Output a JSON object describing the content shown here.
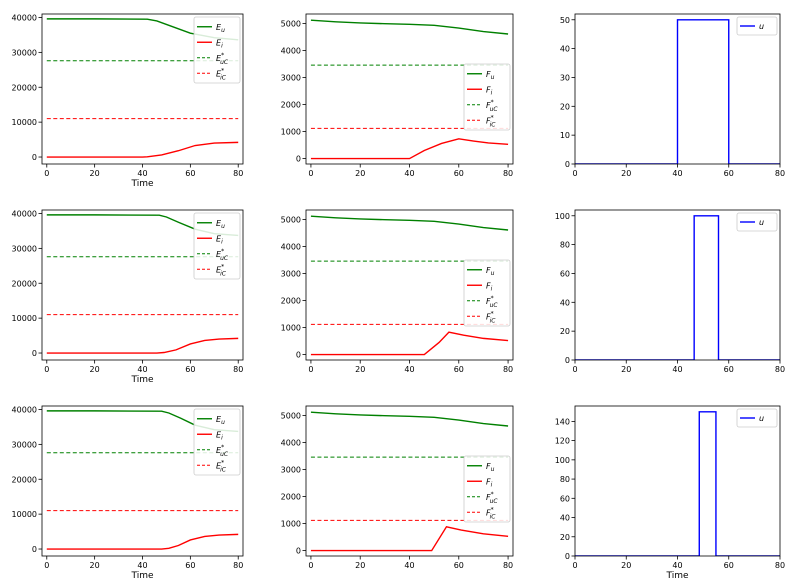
{
  "colors": {
    "E_u": "#008000",
    "E_i": "#ff0000",
    "F_u": "#008000",
    "F_i": "#ff0000",
    "u": "#0000ff",
    "ref_uC": "#008000",
    "ref_iC": "#ff0000"
  },
  "legend_labels": {
    "E": [
      {
        "key": "E_u",
        "base": "E",
        "sub": "u",
        "sup": "",
        "style": "solid"
      },
      {
        "key": "E_i",
        "base": "E",
        "sub": "i",
        "sup": "",
        "style": "solid"
      },
      {
        "key": "E_uC",
        "base": "E",
        "sub": "uC",
        "sup": "*",
        "style": "dashed"
      },
      {
        "key": "E_iC",
        "base": "E",
        "sub": "iC",
        "sup": "*",
        "style": "dashed"
      }
    ],
    "F": [
      {
        "key": "F_u",
        "base": "F",
        "sub": "u",
        "sup": "",
        "style": "solid"
      },
      {
        "key": "F_i",
        "base": "F",
        "sub": "i",
        "sup": "",
        "style": "solid"
      },
      {
        "key": "F_uC",
        "base": "F",
        "sub": "uC",
        "sup": "*",
        "style": "dashed"
      },
      {
        "key": "F_iC",
        "base": "F",
        "sub": "iC",
        "sup": "*",
        "style": "dashed"
      }
    ],
    "U": [
      {
        "key": "u",
        "base": "u",
        "sub": "",
        "sup": "",
        "style": "solid"
      }
    ]
  },
  "chart_data": [
    {
      "row": 0,
      "col": 0,
      "type": "line",
      "kind": "E",
      "xlabel": "Time",
      "xlim": [
        -2,
        82
      ],
      "ylim": [
        -2000,
        41000
      ],
      "xticks": [
        0,
        20,
        40,
        60,
        80
      ],
      "yticks": [
        0,
        10000,
        20000,
        30000,
        40000
      ],
      "legend_loc": "top-right",
      "series": [
        {
          "name": "E_u",
          "style": "solid",
          "points": [
            [
              0,
              39600
            ],
            [
              20,
              39600
            ],
            [
              42,
              39500
            ],
            [
              46,
              39000
            ],
            [
              52,
              37500
            ],
            [
              60,
              35500
            ],
            [
              70,
              34200
            ],
            [
              80,
              33600
            ]
          ]
        },
        {
          "name": "E_i",
          "style": "solid",
          "points": [
            [
              0,
              0
            ],
            [
              40,
              0
            ],
            [
              42,
              50
            ],
            [
              48,
              600
            ],
            [
              55,
              1800
            ],
            [
              62,
              3300
            ],
            [
              70,
              4000
            ],
            [
              80,
              4200
            ]
          ]
        },
        {
          "name": "E_uC",
          "style": "dashed",
          "points": [
            [
              0,
              27600
            ],
            [
              80,
              27600
            ]
          ]
        },
        {
          "name": "E_iC",
          "style": "dashed",
          "points": [
            [
              0,
              11000
            ],
            [
              80,
              11000
            ]
          ]
        }
      ]
    },
    {
      "row": 0,
      "col": 1,
      "type": "line",
      "kind": "F",
      "xlabel": "",
      "xlim": [
        -2,
        82
      ],
      "ylim": [
        -200,
        5350
      ],
      "xticks": [
        0,
        20,
        40,
        60,
        80
      ],
      "yticks": [
        0,
        1000,
        2000,
        3000,
        4000,
        5000
      ],
      "legend_loc": "center-right",
      "series": [
        {
          "name": "F_u",
          "style": "solid",
          "points": [
            [
              0,
              5120
            ],
            [
              10,
              5060
            ],
            [
              20,
              5020
            ],
            [
              30,
              4990
            ],
            [
              40,
              4970
            ],
            [
              50,
              4930
            ],
            [
              60,
              4830
            ],
            [
              70,
              4700
            ],
            [
              80,
              4610
            ]
          ]
        },
        {
          "name": "F_i",
          "style": "solid",
          "points": [
            [
              0,
              0
            ],
            [
              40,
              0
            ],
            [
              46,
              300
            ],
            [
              53,
              560
            ],
            [
              60,
              730
            ],
            [
              66,
              650
            ],
            [
              72,
              580
            ],
            [
              80,
              530
            ]
          ]
        },
        {
          "name": "F_uC",
          "style": "dashed",
          "points": [
            [
              0,
              3460
            ],
            [
              80,
              3460
            ]
          ]
        },
        {
          "name": "F_iC",
          "style": "dashed",
          "points": [
            [
              0,
              1120
            ],
            [
              80,
              1120
            ]
          ]
        }
      ]
    },
    {
      "row": 0,
      "col": 2,
      "type": "line",
      "kind": "U",
      "xlabel": "",
      "xlim": [
        0,
        80
      ],
      "ylim": [
        0,
        52
      ],
      "xticks": [
        0,
        20,
        40,
        60,
        80
      ],
      "yticks": [
        0,
        10,
        20,
        30,
        40,
        50
      ],
      "legend_loc": "top-right",
      "series": [
        {
          "name": "u",
          "style": "solid",
          "points": [
            [
              0,
              0
            ],
            [
              40,
              0
            ],
            [
              40,
              50
            ],
            [
              60,
              50
            ],
            [
              60,
              0
            ],
            [
              80,
              0
            ]
          ]
        }
      ]
    },
    {
      "row": 1,
      "col": 0,
      "type": "line",
      "kind": "E",
      "xlabel": "Time",
      "xlim": [
        -2,
        82
      ],
      "ylim": [
        -2000,
        41000
      ],
      "xticks": [
        0,
        20,
        40,
        60,
        80
      ],
      "yticks": [
        0,
        10000,
        20000,
        30000,
        40000
      ],
      "legend_loc": "top-right",
      "series": [
        {
          "name": "E_u",
          "style": "solid",
          "points": [
            [
              0,
              39600
            ],
            [
              20,
              39600
            ],
            [
              47,
              39500
            ],
            [
              50,
              39000
            ],
            [
              55,
              37500
            ],
            [
              62,
              35500
            ],
            [
              70,
              34200
            ],
            [
              80,
              33700
            ]
          ]
        },
        {
          "name": "E_i",
          "style": "solid",
          "points": [
            [
              0,
              0
            ],
            [
              46,
              0
            ],
            [
              49,
              150
            ],
            [
              54,
              900
            ],
            [
              60,
              2600
            ],
            [
              66,
              3600
            ],
            [
              72,
              4000
            ],
            [
              80,
              4200
            ]
          ]
        },
        {
          "name": "E_uC",
          "style": "dashed",
          "points": [
            [
              0,
              27600
            ],
            [
              80,
              27600
            ]
          ]
        },
        {
          "name": "E_iC",
          "style": "dashed",
          "points": [
            [
              0,
              11000
            ],
            [
              80,
              11000
            ]
          ]
        }
      ]
    },
    {
      "row": 1,
      "col": 1,
      "type": "line",
      "kind": "F",
      "xlabel": "",
      "xlim": [
        -2,
        82
      ],
      "ylim": [
        -200,
        5350
      ],
      "xticks": [
        0,
        20,
        40,
        60,
        80
      ],
      "yticks": [
        0,
        1000,
        2000,
        3000,
        4000,
        5000
      ],
      "legend_loc": "center-right",
      "series": [
        {
          "name": "F_u",
          "style": "solid",
          "points": [
            [
              0,
              5120
            ],
            [
              10,
              5060
            ],
            [
              20,
              5020
            ],
            [
              30,
              4990
            ],
            [
              40,
              4970
            ],
            [
              50,
              4930
            ],
            [
              60,
              4830
            ],
            [
              70,
              4700
            ],
            [
              80,
              4610
            ]
          ]
        },
        {
          "name": "F_i",
          "style": "solid",
          "points": [
            [
              0,
              0
            ],
            [
              46,
              0
            ],
            [
              52,
              450
            ],
            [
              56,
              830
            ],
            [
              62,
              720
            ],
            [
              70,
              600
            ],
            [
              80,
              520
            ]
          ]
        },
        {
          "name": "F_uC",
          "style": "dashed",
          "points": [
            [
              0,
              3460
            ],
            [
              80,
              3460
            ]
          ]
        },
        {
          "name": "F_iC",
          "style": "dashed",
          "points": [
            [
              0,
              1120
            ],
            [
              80,
              1120
            ]
          ]
        }
      ]
    },
    {
      "row": 1,
      "col": 2,
      "type": "line",
      "kind": "U",
      "xlabel": "",
      "xlim": [
        0,
        80
      ],
      "ylim": [
        0,
        104
      ],
      "xticks": [
        0,
        20,
        40,
        60,
        80
      ],
      "yticks": [
        0,
        20,
        40,
        60,
        80,
        100
      ],
      "legend_loc": "top-right",
      "series": [
        {
          "name": "u",
          "style": "solid",
          "points": [
            [
              0,
              0
            ],
            [
              46.5,
              0
            ],
            [
              46.5,
              100
            ],
            [
              56,
              100
            ],
            [
              56,
              0
            ],
            [
              80,
              0
            ]
          ]
        }
      ]
    },
    {
      "row": 2,
      "col": 0,
      "type": "line",
      "kind": "E",
      "xlabel": "Time",
      "xlim": [
        -2,
        82
      ],
      "ylim": [
        -2000,
        41000
      ],
      "xticks": [
        0,
        20,
        40,
        60,
        80
      ],
      "yticks": [
        0,
        10000,
        20000,
        30000,
        40000
      ],
      "legend_loc": "top-right",
      "series": [
        {
          "name": "E_u",
          "style": "solid",
          "points": [
            [
              0,
              39600
            ],
            [
              20,
              39600
            ],
            [
              48,
              39500
            ],
            [
              51,
              39000
            ],
            [
              56,
              37500
            ],
            [
              62,
              35500
            ],
            [
              70,
              34200
            ],
            [
              80,
              33700
            ]
          ]
        },
        {
          "name": "E_i",
          "style": "solid",
          "points": [
            [
              0,
              0
            ],
            [
              48,
              0
            ],
            [
              51,
              200
            ],
            [
              55,
              1000
            ],
            [
              60,
              2600
            ],
            [
              66,
              3600
            ],
            [
              72,
              4000
            ],
            [
              80,
              4200
            ]
          ]
        },
        {
          "name": "E_uC",
          "style": "dashed",
          "points": [
            [
              0,
              27600
            ],
            [
              80,
              27600
            ]
          ]
        },
        {
          "name": "E_iC",
          "style": "dashed",
          "points": [
            [
              0,
              11000
            ],
            [
              80,
              11000
            ]
          ]
        }
      ]
    },
    {
      "row": 2,
      "col": 1,
      "type": "line",
      "kind": "F",
      "xlabel": "",
      "xlim": [
        -2,
        82
      ],
      "ylim": [
        -200,
        5350
      ],
      "xticks": [
        0,
        20,
        40,
        60,
        80
      ],
      "yticks": [
        0,
        1000,
        2000,
        3000,
        4000,
        5000
      ],
      "legend_loc": "center-right",
      "series": [
        {
          "name": "F_u",
          "style": "solid",
          "points": [
            [
              0,
              5120
            ],
            [
              10,
              5060
            ],
            [
              20,
              5020
            ],
            [
              30,
              4990
            ],
            [
              40,
              4970
            ],
            [
              50,
              4930
            ],
            [
              60,
              4830
            ],
            [
              70,
              4700
            ],
            [
              80,
              4610
            ]
          ]
        },
        {
          "name": "F_i",
          "style": "solid",
          "points": [
            [
              0,
              0
            ],
            [
              49,
              0
            ],
            [
              55,
              880
            ],
            [
              61,
              760
            ],
            [
              70,
              620
            ],
            [
              80,
              530
            ]
          ]
        },
        {
          "name": "F_uC",
          "style": "dashed",
          "points": [
            [
              0,
              3460
            ],
            [
              80,
              3460
            ]
          ]
        },
        {
          "name": "F_iC",
          "style": "dashed",
          "points": [
            [
              0,
              1120
            ],
            [
              80,
              1120
            ]
          ]
        }
      ]
    },
    {
      "row": 2,
      "col": 2,
      "type": "line",
      "kind": "U",
      "xlabel": "Time",
      "xlim": [
        0,
        80
      ],
      "ylim": [
        0,
        156
      ],
      "xticks": [
        0,
        20,
        40,
        60,
        80
      ],
      "yticks": [
        0,
        20,
        40,
        60,
        80,
        100,
        120,
        140
      ],
      "legend_loc": "top-right",
      "series": [
        {
          "name": "u",
          "style": "solid",
          "points": [
            [
              0,
              0
            ],
            [
              48.5,
              0
            ],
            [
              48.5,
              150
            ],
            [
              55,
              150
            ],
            [
              55,
              0
            ],
            [
              80,
              0
            ]
          ]
        }
      ]
    }
  ]
}
